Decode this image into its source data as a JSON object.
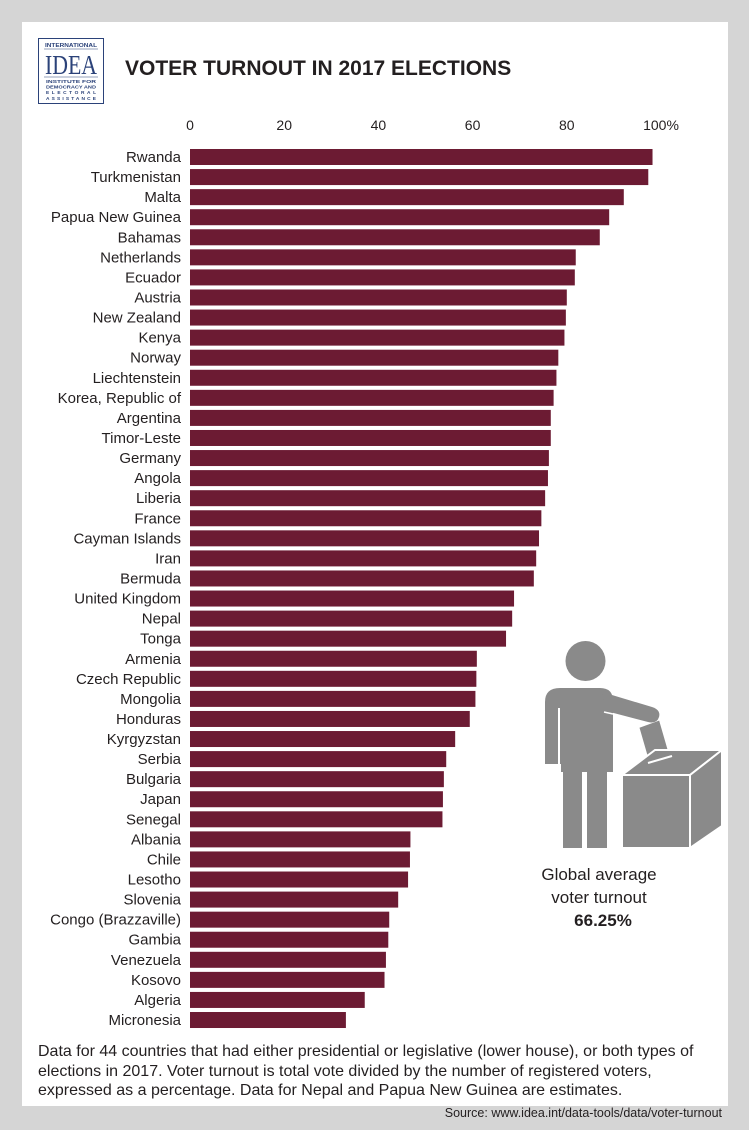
{
  "logo": {
    "top_text": "INTERNATIONAL",
    "mark": "IDEA",
    "lines": [
      "INSTITUTE FOR",
      "DEMOCRACY AND",
      "ELECTORAL",
      "ASSISTANCE"
    ]
  },
  "chart_data": {
    "type": "bar",
    "orientation": "horizontal",
    "title": "VOTER TURNOUT IN 2017 ELECTIONS",
    "categories": [
      "Rwanda",
      "Turkmenistan",
      "Malta",
      "Papua New Guinea",
      "Bahamas",
      "Netherlands",
      "Ecuador",
      "Austria",
      "New Zealand",
      "Kenya",
      "Norway",
      "Liechtenstein",
      "Korea, Republic of",
      "Argentina",
      "Timor-Leste",
      "Germany",
      "Angola",
      "Liberia",
      "France",
      "Cayman Islands",
      "Iran",
      "Bermuda",
      "United Kingdom",
      "Nepal",
      "Tonga",
      "Armenia",
      "Czech Republic",
      "Mongolia",
      "Honduras",
      "Kyrgyzstan",
      "Serbia",
      "Bulgaria",
      "Japan",
      "Senegal",
      "Albania",
      "Chile",
      "Lesotho",
      "Slovenia",
      "Congo (Brazzaville)",
      "Gambia",
      "Venezuela",
      "Kosovo",
      "Algeria",
      "Micronesia"
    ],
    "values": [
      98.2,
      97.3,
      92.1,
      89.0,
      87.0,
      81.9,
      81.7,
      80.0,
      79.8,
      79.5,
      78.2,
      77.8,
      77.2,
      76.6,
      76.6,
      76.2,
      76.0,
      75.4,
      74.6,
      74.1,
      73.5,
      73.0,
      68.8,
      68.4,
      67.1,
      60.9,
      60.8,
      60.6,
      59.4,
      56.3,
      54.4,
      53.9,
      53.7,
      53.6,
      46.8,
      46.7,
      46.3,
      44.2,
      42.3,
      42.1,
      41.6,
      41.3,
      37.1,
      33.1
    ],
    "xlim": [
      0,
      100
    ],
    "xticks": [
      0,
      20,
      40,
      60,
      80,
      100
    ],
    "xtick_labels": [
      "0",
      "20",
      "40",
      "60",
      "80",
      "100%"
    ],
    "axis_position": "top",
    "grid": false,
    "bar_color": "#6c1b33"
  },
  "annotation": {
    "line1": "Global average",
    "line2": "voter turnout",
    "value": "66.25%"
  },
  "note": {
    "lines": [
      "Data for 44 countries that had either presidential or legislative (lower house), or both types of",
      "elections in 2017. Voter turnout is total vote divided by the number of registered voters,",
      "expressed as a percentage. Data for Nepal and Papua New Guinea are estimates."
    ]
  },
  "source": "Source: www.idea.int/data-tools/data/voter-turnout",
  "icons": {
    "voter": "person-casting-ballot-icon",
    "logo": "idea-logo"
  },
  "colors": {
    "frame": "#d5d5d5",
    "panel": "#ffffff",
    "bar": "#6c1b33",
    "icon": "#8a8a8a",
    "text": "#231f20",
    "logo": "#2b4279"
  }
}
